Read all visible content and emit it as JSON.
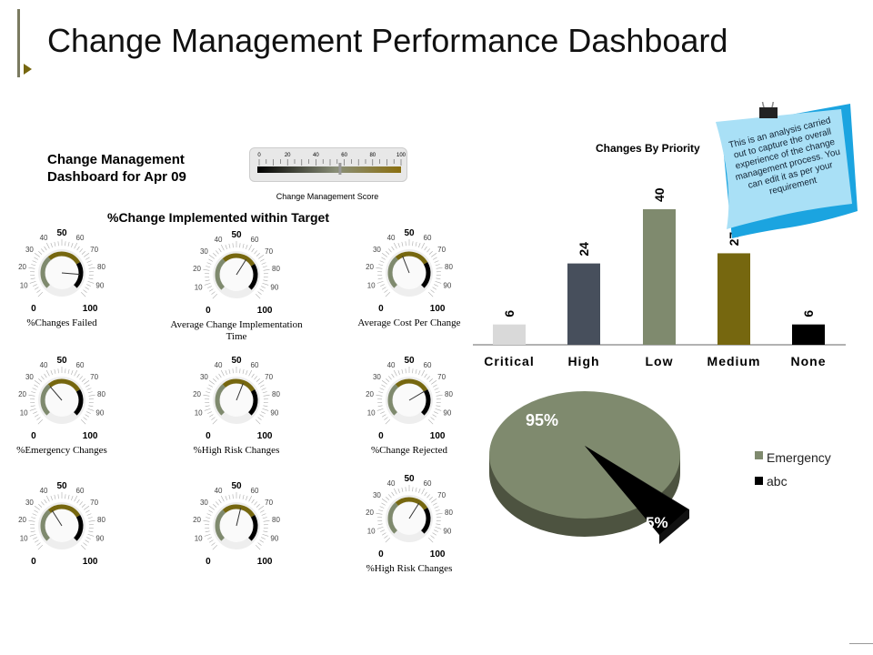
{
  "header": {
    "title": "Change Management Performance Dashboard"
  },
  "subtitle": "Change Management Dashboard for Apr 09",
  "score": {
    "label": "Change Management Score",
    "ticks": [
      "0",
      "20",
      "40",
      "60",
      "80",
      "100"
    ],
    "value": 57
  },
  "section_title": "%Change Implemented within Target",
  "gauges": [
    {
      "label": "%Changes Failed",
      "value": 85
    },
    {
      "label": "Average Change Implementation Time",
      "value": 62
    },
    {
      "label": "Average Cost Per Change",
      "value": 42
    },
    {
      "label": "%Emergency Changes",
      "value": 35
    },
    {
      "label": "%High Risk Changes",
      "value": 58
    },
    {
      "label": "%Change Rejected",
      "value": 72
    },
    {
      "label": "",
      "value": 38
    },
    {
      "label": "",
      "value": 55
    },
    {
      "label": "%High Risk Changes",
      "value": 62
    }
  ],
  "gauge_ticks": [
    "0",
    "10",
    "20",
    "30",
    "40",
    "50",
    "60",
    "70",
    "80",
    "90",
    "100"
  ],
  "chart_data": [
    {
      "type": "bar",
      "title": "Changes By Priority",
      "categories": [
        "Critical",
        "High",
        "Low",
        "Medium",
        "None"
      ],
      "values": [
        6,
        24,
        40,
        27,
        6
      ],
      "colors": [
        "#d9d9d9",
        "#474f5c",
        "#7f8a6e",
        "#76670f",
        "#000000"
      ],
      "ylim": [
        0,
        40
      ]
    },
    {
      "type": "pie",
      "categories": [
        "Emergency",
        "abc"
      ],
      "values": [
        95,
        5
      ],
      "labels": [
        "95%",
        "5%"
      ],
      "colors": [
        "#7f8a6e",
        "#000000"
      ]
    }
  ],
  "note": "This is an analysis carried out to capture the overall experience of the change management process. You can edit it as per your requirement"
}
